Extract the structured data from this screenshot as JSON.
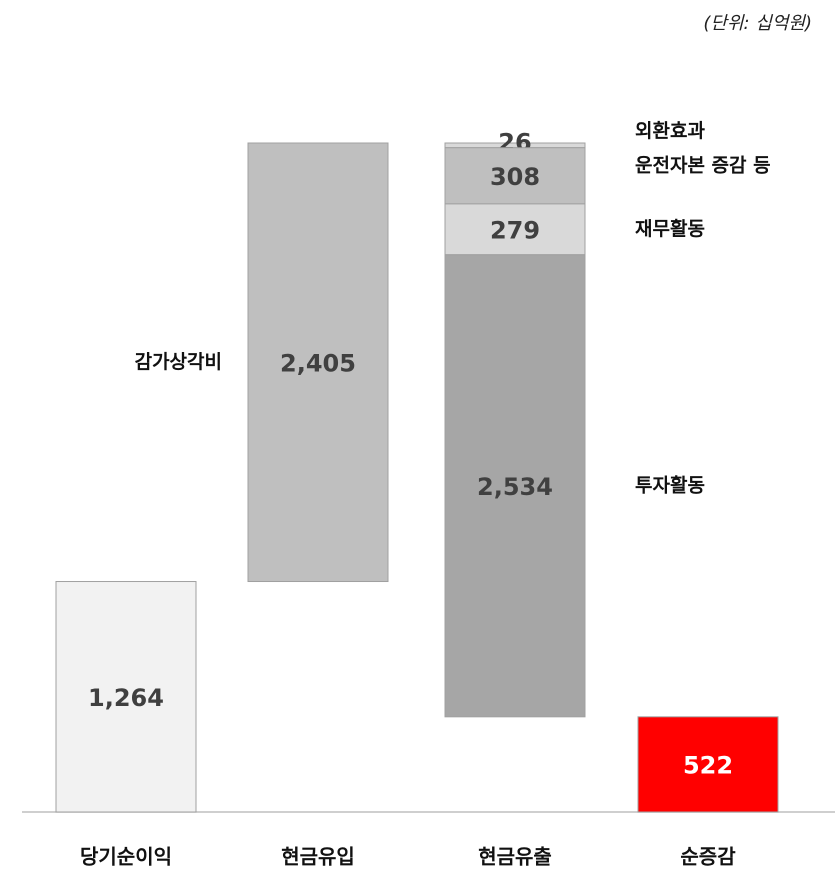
{
  "chart_data": {
    "type": "waterfall",
    "unit_note": "(단위: 십억원)",
    "bars": [
      {
        "category": "당기순이익",
        "kind": "total",
        "segments": [
          {
            "value": 1264,
            "value_label": "1,264",
            "color": "#f2f2f2"
          }
        ]
      },
      {
        "category": "현금유입",
        "kind": "increase",
        "segments": [
          {
            "name": "감가상각비",
            "value": 2405,
            "value_label": "2,405",
            "color": "#bfbfbf"
          }
        ]
      },
      {
        "category": "현금유출",
        "kind": "decrease",
        "segments": [
          {
            "name": "외환효과",
            "value": 26,
            "color": "#d9d9d9"
          },
          {
            "name": "운전자본 증감 등",
            "value": 308,
            "color": "#bfbfbf"
          },
          {
            "name": "재무활동",
            "value": 279,
            "color": "#d9d9d9"
          },
          {
            "name": "투자활동",
            "value": 2534,
            "value_label": "2,534",
            "color": "#a6a6a6"
          }
        ]
      },
      {
        "category": "순증감",
        "kind": "total",
        "segments": [
          {
            "value": 522,
            "color": "#ff0000"
          }
        ]
      }
    ]
  }
}
